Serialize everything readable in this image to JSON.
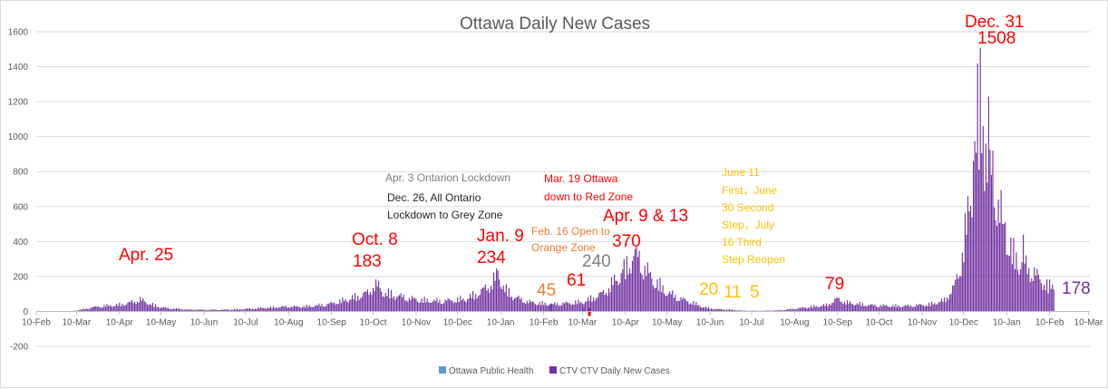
{
  "chart_data": {
    "type": "bar",
    "title": "Ottawa Daily New Cases",
    "ylim": [
      -200,
      1600
    ],
    "y_ticks": [
      "-200",
      "0",
      "200",
      "400",
      "600",
      "800",
      "1000",
      "1200",
      "1400",
      "1600"
    ],
    "x_range_days": [
      0,
      760
    ],
    "x_ticks": [
      {
        "label": "10-Feb",
        "day": 0
      },
      {
        "label": "10-Mar",
        "day": 29
      },
      {
        "label": "10-Apr",
        "day": 60
      },
      {
        "label": "10-May",
        "day": 90
      },
      {
        "label": "10-Jun",
        "day": 121
      },
      {
        "label": "10-Jul",
        "day": 151
      },
      {
        "label": "10-Aug",
        "day": 182
      },
      {
        "label": "10-Sep",
        "day": 213
      },
      {
        "label": "10-Oct",
        "day": 243
      },
      {
        "label": "10-Nov",
        "day": 274
      },
      {
        "label": "10-Dec",
        "day": 304
      },
      {
        "label": "10-Jan",
        "day": 335
      },
      {
        "label": "10-Feb",
        "day": 366
      },
      {
        "label": "10-Mar",
        "day": 394
      },
      {
        "label": "10-Apr",
        "day": 425
      },
      {
        "label": "10-May",
        "day": 455
      },
      {
        "label": "10-Jun",
        "day": 486
      },
      {
        "label": "10-Jul",
        "day": 516
      },
      {
        "label": "10-Aug",
        "day": 547
      },
      {
        "label": "10-Sep",
        "day": 578
      },
      {
        "label": "10-Oct",
        "day": 608
      },
      {
        "label": "10-Nov",
        "day": 639
      },
      {
        "label": "10-Dec",
        "day": 669
      },
      {
        "label": "10-Jan",
        "day": 700
      },
      {
        "label": "10-Feb",
        "day": 731
      },
      {
        "label": "10-Mar",
        "day": 759
      }
    ],
    "series": [
      {
        "name": "Ottawa Public Health",
        "color": "#5b9bd5"
      },
      {
        "name": "CTV CTV Daily New Cases",
        "color": "#7030a0"
      }
    ],
    "ctv_anchor_points": [
      [
        25,
        0
      ],
      [
        28,
        5
      ],
      [
        35,
        15
      ],
      [
        40,
        25
      ],
      [
        50,
        35
      ],
      [
        58,
        40
      ],
      [
        65,
        50
      ],
      [
        70,
        60
      ],
      [
        75,
        75
      ],
      [
        80,
        55
      ],
      [
        88,
        30
      ],
      [
        95,
        20
      ],
      [
        110,
        12
      ],
      [
        125,
        10
      ],
      [
        140,
        12
      ],
      [
        150,
        15
      ],
      [
        160,
        20
      ],
      [
        170,
        25
      ],
      [
        180,
        30
      ],
      [
        190,
        30
      ],
      [
        200,
        35
      ],
      [
        210,
        45
      ],
      [
        220,
        65
      ],
      [
        230,
        90
      ],
      [
        240,
        120
      ],
      [
        245,
        183
      ],
      [
        250,
        120
      ],
      [
        260,
        100
      ],
      [
        270,
        80
      ],
      [
        280,
        70
      ],
      [
        290,
        65
      ],
      [
        300,
        70
      ],
      [
        310,
        80
      ],
      [
        320,
        120
      ],
      [
        328,
        170
      ],
      [
        333,
        234
      ],
      [
        338,
        140
      ],
      [
        345,
        90
      ],
      [
        355,
        60
      ],
      [
        365,
        50
      ],
      [
        372,
        45
      ],
      [
        380,
        50
      ],
      [
        388,
        55
      ],
      [
        395,
        61
      ],
      [
        400,
        80
      ],
      [
        410,
        120
      ],
      [
        418,
        200
      ],
      [
        423,
        240
      ],
      [
        430,
        340
      ],
      [
        433,
        370
      ],
      [
        438,
        280
      ],
      [
        445,
        200
      ],
      [
        455,
        120
      ],
      [
        465,
        80
      ],
      [
        475,
        50
      ],
      [
        482,
        25
      ],
      [
        490,
        15
      ],
      [
        500,
        11
      ],
      [
        510,
        5
      ],
      [
        520,
        4
      ],
      [
        530,
        5
      ],
      [
        540,
        10
      ],
      [
        550,
        20
      ],
      [
        560,
        30
      ],
      [
        570,
        40
      ],
      [
        578,
        79
      ],
      [
        585,
        55
      ],
      [
        600,
        40
      ],
      [
        615,
        35
      ],
      [
        630,
        35
      ],
      [
        645,
        45
      ],
      [
        655,
        70
      ],
      [
        662,
        150
      ],
      [
        667,
        300
      ],
      [
        672,
        600
      ],
      [
        676,
        900
      ],
      [
        679,
        1200
      ],
      [
        681,
        1508
      ],
      [
        683,
        1100
      ],
      [
        686,
        800
      ],
      [
        690,
        900
      ],
      [
        694,
        700
      ],
      [
        698,
        500
      ],
      [
        705,
        350
      ],
      [
        712,
        300
      ],
      [
        718,
        250
      ],
      [
        725,
        200
      ],
      [
        730,
        150
      ],
      [
        734,
        178
      ]
    ],
    "ctv_spikes": [
      [
        681,
        1508
      ],
      [
        687,
        1230
      ],
      [
        685,
        960
      ],
      [
        683,
        1060
      ],
      [
        690,
        920
      ],
      [
        676,
        860
      ],
      [
        694,
        640
      ],
      [
        680,
        810
      ],
      [
        699,
        510
      ],
      [
        712,
        440
      ],
      [
        433,
        370
      ],
      [
        423,
        240
      ],
      [
        333,
        234
      ],
      [
        245,
        183
      ]
    ],
    "public_health_bars": [
      [
        371,
        45
      ],
      [
        395,
        20
      ],
      [
        380,
        5
      ]
    ],
    "annotations": [
      {
        "text": "Apr. 25",
        "color": "#ff0000",
        "size": 19
      },
      {
        "text": "Oct. 8",
        "color": "#ff0000",
        "size": 19
      },
      {
        "text": "183",
        "color": "#ff0000",
        "size": 19
      },
      {
        "text": "Jan. 9",
        "color": "#ff0000",
        "size": 19
      },
      {
        "text": "234",
        "color": "#ff0000",
        "size": 19
      },
      {
        "text": "Apr. 3 Ontarion Lockdown",
        "color": "#7f7f7f",
        "size": 12
      },
      {
        "text": "Dec. 26, All Ontario",
        "color": "#262626",
        "size": 12
      },
      {
        "text": "Lockdown to Grey Zone",
        "color": "#262626",
        "size": 12
      },
      {
        "text": "Feb. 16 Open to",
        "color": "#ed7d31",
        "size": 12
      },
      {
        "text": "Orange Zone",
        "color": "#ed7d31",
        "size": 12
      },
      {
        "text": "45",
        "color": "#ed7d31",
        "size": 19
      },
      {
        "text": "61",
        "color": "#ff0000",
        "size": 19
      },
      {
        "text": "240",
        "color": "#7f7f7f",
        "size": 19
      },
      {
        "text": "Mar. 19 Ottawa",
        "color": "#ff0000",
        "size": 12
      },
      {
        "text": "down to Red Zone",
        "color": "#ff0000",
        "size": 12
      },
      {
        "text": "Apr. 9 & 13",
        "color": "#ff0000",
        "size": 19
      },
      {
        "text": "370",
        "color": "#ff0000",
        "size": 19
      },
      {
        "text": "June 11",
        "color": "#ffc000",
        "size": 12
      },
      {
        "text": "First，June",
        "color": "#ffc000",
        "size": 12
      },
      {
        "text": "30 Second",
        "color": "#ffc000",
        "size": 12
      },
      {
        "text": "Step，July",
        "color": "#ffc000",
        "size": 12
      },
      {
        "text": "16 Third",
        "color": "#ffc000",
        "size": 12
      },
      {
        "text": "Step Reopen",
        "color": "#ffc000",
        "size": 12
      },
      {
        "text": "20",
        "color": "#ffc000",
        "size": 19
      },
      {
        "text": "11",
        "color": "#ffc000",
        "size": 19
      },
      {
        "text": "5",
        "color": "#ffc000",
        "size": 19
      },
      {
        "text": "79",
        "color": "#ff0000",
        "size": 19
      },
      {
        "text": "Dec. 31",
        "color": "#ff0000",
        "size": 19
      },
      {
        "text": "1508",
        "color": "#ff0000",
        "size": 19
      },
      {
        "text": "178",
        "color": "#7030a0",
        "size": 19
      }
    ]
  }
}
